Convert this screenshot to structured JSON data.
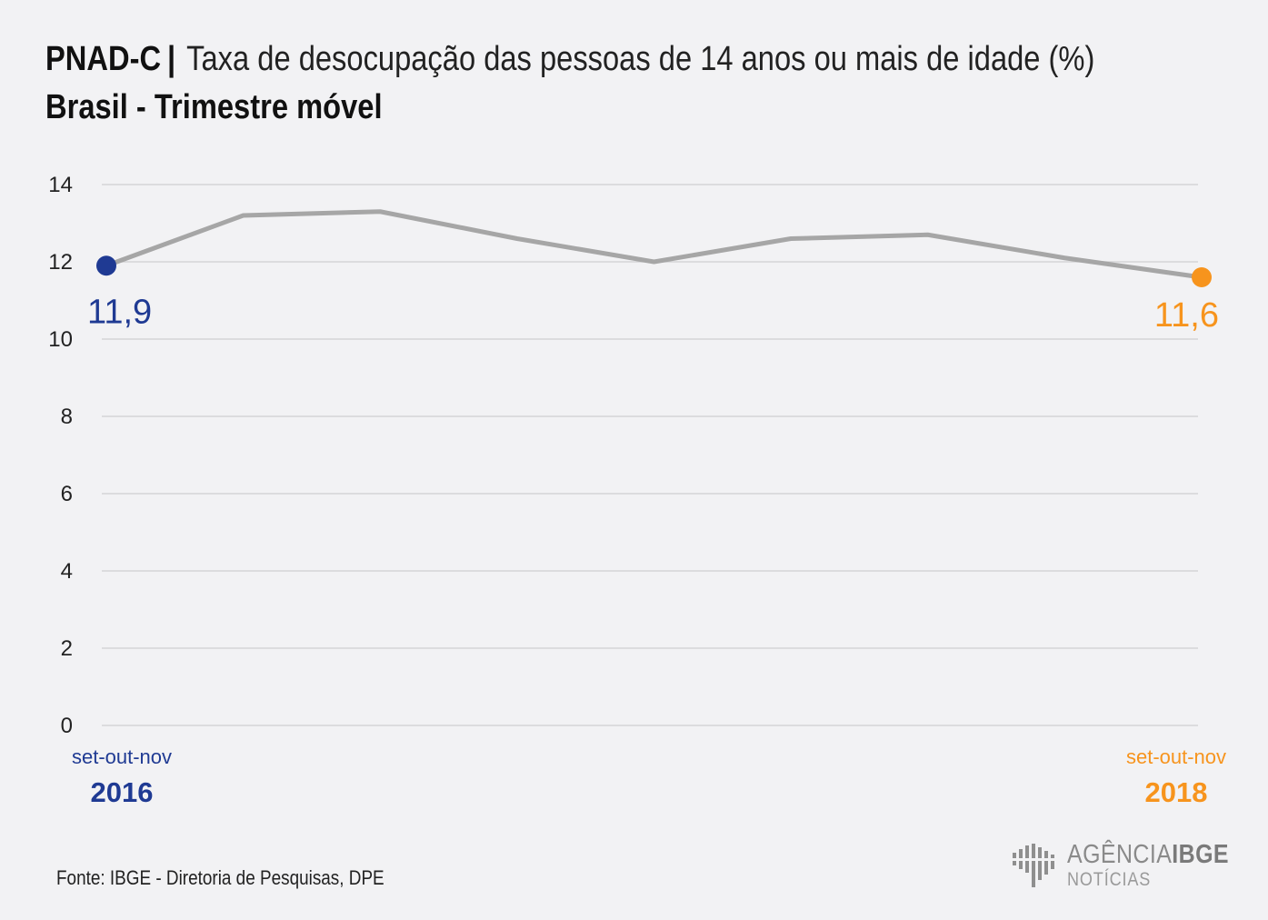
{
  "header": {
    "brand": "PNAD-C",
    "separator": "|",
    "title": "Taxa de desocupação das pessoas de 14 anos ou mais de idade (%)",
    "subtitle": "Brasil - Trimestre móvel"
  },
  "chart_data": {
    "type": "line",
    "title": "Taxa de desocupação das pessoas de 14 anos ou mais de idade (%)",
    "subtitle": "Brasil - Trimestre móvel",
    "ylim": [
      0,
      14
    ],
    "yticks": [
      "0",
      "2",
      "4",
      "6",
      "8",
      "10",
      "12",
      "14"
    ],
    "grid": true,
    "legend": "none",
    "series": [
      {
        "values": [
          11.9,
          13.2,
          13.3,
          12.6,
          12.0,
          12.6,
          12.7,
          12.1,
          11.6
        ],
        "color": "#a6a6a6"
      }
    ],
    "start": {
      "value_label": "11,9",
      "period": "set-out-nov",
      "year": "2016",
      "color": "#1f3a93"
    },
    "end": {
      "value_label": "11,6",
      "period": "set-out-nov",
      "year": "2018",
      "color": "#f7941d"
    }
  },
  "footer": {
    "source": "Fonte: IBGE - Diretoria de Pesquisas, DPE"
  },
  "logo": {
    "name_light": "AGÊNCIA",
    "name_bold": "IBGE",
    "tagline": "NOTÍCIAS",
    "icon": "ibge-bars-icon"
  }
}
